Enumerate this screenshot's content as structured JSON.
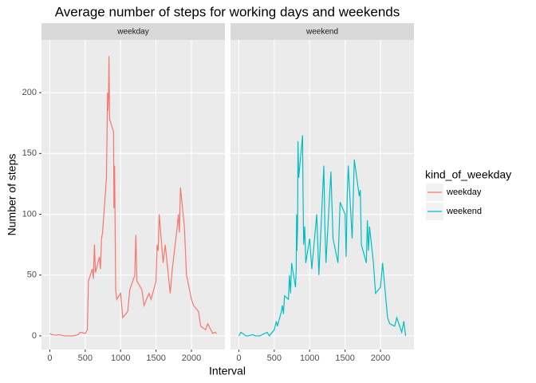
{
  "chart_data": {
    "type": "line",
    "facet_by": "series",
    "title": "Average number of steps for working days and weekends",
    "x_label": "Interval",
    "y_label": "Number of steps",
    "legend_title": "kind_of_weekday",
    "x": [
      0,
      30,
      100,
      130,
      200,
      230,
      300,
      330,
      400,
      430,
      500,
      530,
      545,
      600,
      615,
      630,
      645,
      700,
      715,
      730,
      745,
      800,
      810,
      815,
      820,
      830,
      835,
      845,
      900,
      905,
      915,
      930,
      945,
      1000,
      1030,
      1100,
      1130,
      1200,
      1215,
      1230,
      1300,
      1330,
      1400,
      1430,
      1500,
      1515,
      1530,
      1545,
      1600,
      1630,
      1700,
      1715,
      1730,
      1800,
      1815,
      1830,
      1845,
      1900,
      1930,
      2000,
      2030,
      2100,
      2130,
      2200,
      2230,
      2300,
      2330,
      2355
    ],
    "series": [
      {
        "name": "weekday",
        "color": "#f8766d",
        "values": [
          2,
          1,
          0.5,
          1,
          0,
          0,
          0,
          0,
          1,
          3,
          2,
          5,
          45,
          55,
          47,
          75,
          52,
          65,
          55,
          80,
          85,
          130,
          175,
          200,
          185,
          200,
          230,
          178,
          168,
          105,
          140,
          38,
          30,
          35,
          15,
          20,
          38,
          50,
          83,
          45,
          38,
          25,
          35,
          30,
          45,
          75,
          70,
          100,
          60,
          75,
          35,
          45,
          55,
          90,
          100,
          85,
          122,
          90,
          50,
          30,
          25,
          20,
          8,
          5,
          10,
          2,
          3,
          2
        ]
      },
      {
        "name": "weekend",
        "color": "#00bfc4",
        "values": [
          0,
          3,
          0,
          0,
          1,
          0,
          0,
          1,
          3,
          0,
          5,
          12,
          8,
          20,
          25,
          18,
          33,
          30,
          50,
          35,
          60,
          40,
          55,
          100,
          70,
          90,
          160,
          130,
          165,
          125,
          75,
          90,
          60,
          80,
          55,
          100,
          50,
          140,
          90,
          60,
          135,
          80,
          60,
          110,
          100,
          65,
          115,
          140,
          80,
          145,
          115,
          120,
          75,
          60,
          95,
          70,
          90,
          60,
          35,
          40,
          60,
          15,
          10,
          8,
          15,
          3,
          12,
          0
        ]
      }
    ],
    "xlim": [
      -117.75,
      2472.75
    ],
    "xticks": [
      0,
      500,
      1000,
      1500,
      2000
    ],
    "ylim": [
      -11.2,
      243.4
    ],
    "yticks": [
      0,
      50,
      100,
      150,
      200
    ],
    "grid": true
  }
}
